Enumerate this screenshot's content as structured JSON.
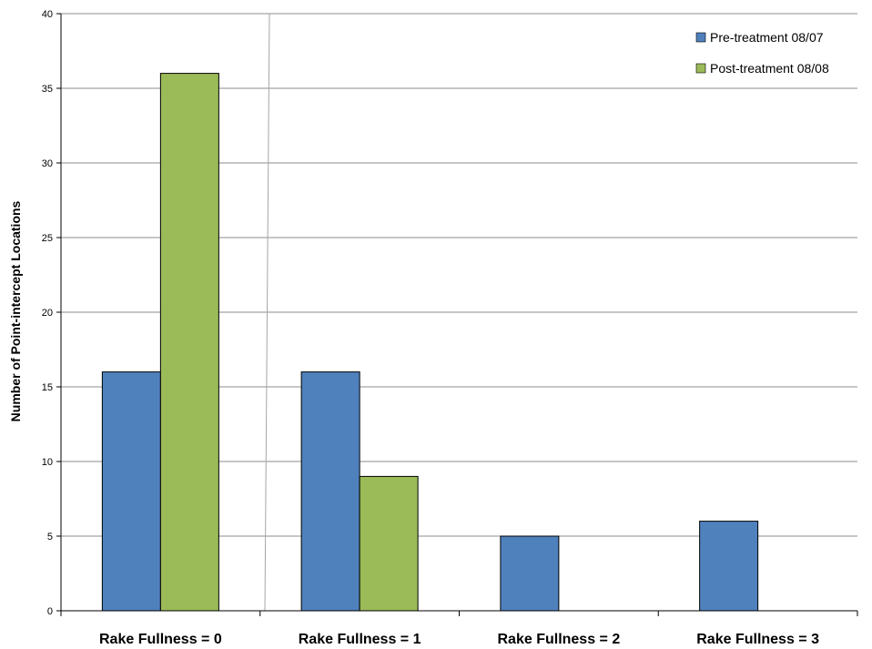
{
  "chart_data": {
    "type": "bar",
    "categories": [
      "Rake Fullness = 0",
      "Rake Fullness = 1",
      "Rake Fullness = 2",
      "Rake Fullness = 3"
    ],
    "series": [
      {
        "name": "Pre-treatment 08/07",
        "color": "#4f81bd",
        "values": [
          16,
          16,
          5,
          6
        ]
      },
      {
        "name": "Post-treatment 08/08",
        "color": "#9bbb59",
        "values": [
          36,
          9,
          0,
          0
        ]
      }
    ],
    "title": "",
    "xlabel": "",
    "ylabel": "Number of Point-intercept Locations",
    "ylim": [
      0,
      40
    ],
    "yticks": [
      0,
      5,
      10,
      15,
      20,
      25,
      30,
      35,
      40
    ],
    "grid": true,
    "legend_position": "top-right"
  }
}
